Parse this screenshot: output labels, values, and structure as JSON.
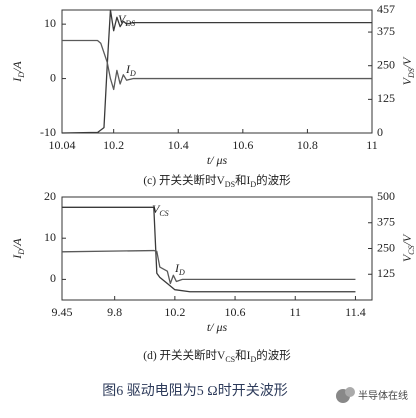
{
  "chart_data": [
    {
      "type": "line",
      "xlabel": "t/ μs",
      "ylabel": [
        "I",
        "D",
        "/A"
      ],
      "y2label": [
        "V",
        "DS",
        "/V"
      ],
      "caption": [
        "(c) 开关关断时V",
        "DS",
        "和I",
        "D",
        "的波形"
      ],
      "xlim": [
        10.04,
        11
      ],
      "xticks": [
        10.04,
        10.2,
        10.4,
        10.6,
        10.8,
        11
      ],
      "ylim": [
        -10,
        12.6
      ],
      "yticks": [
        -10,
        0,
        10
      ],
      "y2lim": [
        0,
        457
      ],
      "y2ticks": [
        0,
        125,
        250,
        375,
        457
      ],
      "series": [
        {
          "name": [
            "V",
            "DS"
          ],
          "color": "#3a3a3a",
          "axis": "y2",
          "x": [
            10.04,
            10.15,
            10.17,
            10.18,
            10.19,
            10.2,
            10.21,
            10.22,
            10.23,
            10.24,
            10.26,
            11
          ],
          "values": [
            0,
            2,
            20,
            250,
            457,
            380,
            430,
            395,
            415,
            405,
            410,
            410
          ]
        },
        {
          "name": [
            "I",
            "D"
          ],
          "color": "#5a5a5a",
          "x": [
            10.04,
            10.15,
            10.16,
            10.18,
            10.19,
            10.2,
            10.21,
            10.22,
            10.23,
            10.24,
            10.26,
            11
          ],
          "values": [
            7,
            7,
            6.5,
            3,
            0,
            -2,
            1.5,
            -1,
            0.7,
            -0.3,
            0,
            0
          ]
        }
      ]
    },
    {
      "type": "line",
      "xlabel": "t/ μs",
      "ylabel": [
        "I",
        "D",
        "/A"
      ],
      "y2label": [
        "V",
        "CS",
        "/V"
      ],
      "caption": [
        "(d) 开关关断时V",
        "CS",
        "和I",
        "D",
        "的波形"
      ],
      "xlim": [
        9.45,
        11.51
      ],
      "xticks": [
        9.45,
        9.8,
        10.2,
        10.6,
        11,
        11.4
      ],
      "ylim": [
        -5,
        20
      ],
      "yticks": [
        0,
        10,
        20
      ],
      "y2lim": [
        0,
        500
      ],
      "y2ticks": [
        125,
        250,
        375,
        500
      ],
      "series": [
        {
          "name": [
            "V",
            "CS"
          ],
          "color": "#3a3a3a",
          "axis": "y2",
          "x": [
            9.45,
            10.06,
            10.08,
            10.1,
            10.15,
            10.2,
            10.3,
            11.4
          ],
          "values": [
            450,
            450,
            130,
            110,
            80,
            50,
            40,
            40
          ]
        },
        {
          "name": [
            "I",
            "D"
          ],
          "color": "#5a5a5a",
          "x": [
            9.45,
            10.06,
            10.08,
            10.1,
            10.15,
            10.17,
            10.19,
            10.21,
            10.25,
            11.4
          ],
          "values": [
            6.7,
            7,
            6.8,
            3,
            2,
            -1,
            1,
            -0.5,
            0,
            0
          ]
        }
      ]
    }
  ],
  "figure_caption": "图6   驱动电阻为5 Ω时开关波形",
  "watermark": "半导体在线"
}
